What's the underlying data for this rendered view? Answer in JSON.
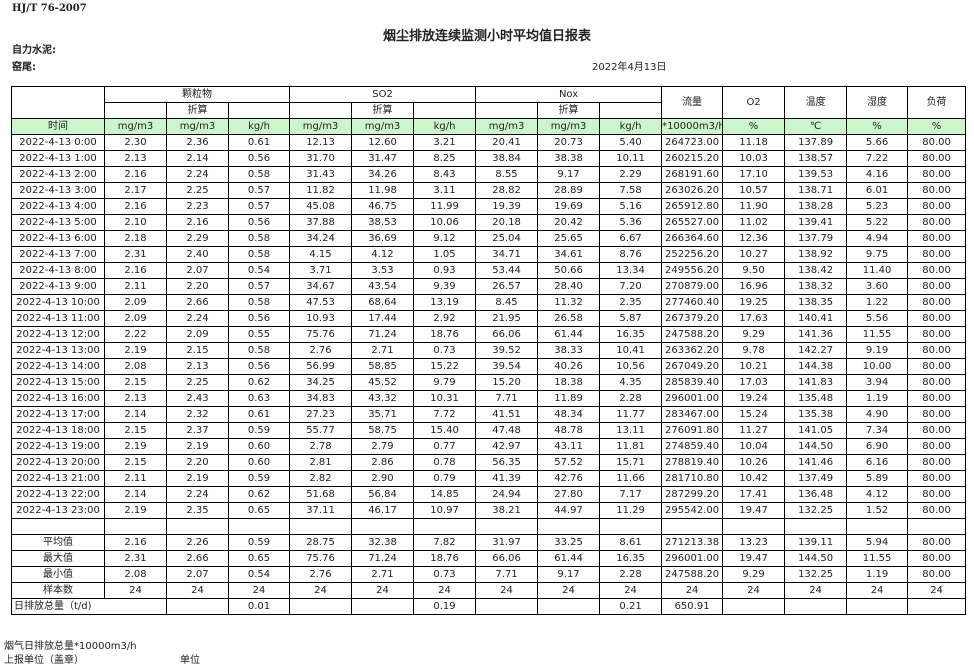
{
  "header": {
    "standard": "HJ/T  76-2007",
    "title": "烟尘排放连续监测小时平均值日报表",
    "company": "自力水泥:",
    "kiln": "窑尾:",
    "date": "2022年4月13日"
  },
  "table": {
    "groups": {
      "particulate": "颗粒物",
      "so2": "SO2",
      "nox": "Nox",
      "flow": "流量",
      "o2": "O2",
      "temp": "温度",
      "humidity": "湿度",
      "load": "负荷"
    },
    "converted": "折算",
    "units": [
      "时间",
      "mg/m3",
      "mg/m3",
      "kg/h",
      "mg/m3",
      "mg/m3",
      "kg/h",
      "mg/m3",
      "mg/m3",
      "kg/h",
      "*10000m3/h",
      "%",
      "℃",
      "%",
      "%"
    ],
    "rows": [
      [
        "2022-4-13  0:00",
        "2.30",
        "2.36",
        "0.61",
        "12.13",
        "12.60",
        "3.21",
        "20.41",
        "20.73",
        "5.40",
        "264723.00",
        "11.18",
        "137.89",
        "5.66",
        "80.00"
      ],
      [
        "2022-4-13  1:00",
        "2.13",
        "2.14",
        "0.56",
        "31.70",
        "31.47",
        "8.25",
        "38.84",
        "38.38",
        "10.11",
        "260215.20",
        "10.03",
        "138.57",
        "7.22",
        "80.00"
      ],
      [
        "2022-4-13  2:00",
        "2.16",
        "2.24",
        "0.58",
        "31.43",
        "34.26",
        "8.43",
        "8.55",
        "9.17",
        "2.29",
        "268191.60",
        "17.10",
        "139.53",
        "4.16",
        "80.00"
      ],
      [
        "2022-4-13  3:00",
        "2.17",
        "2.25",
        "0.57",
        "11.82",
        "11.98",
        "3.11",
        "28.82",
        "28.89",
        "7.58",
        "263026.20",
        "10.57",
        "138.71",
        "6.01",
        "80.00"
      ],
      [
        "2022-4-13  4:00",
        "2.16",
        "2.23",
        "0.57",
        "45.08",
        "46.75",
        "11.99",
        "19.39",
        "19.69",
        "5.16",
        "265912.80",
        "11.90",
        "138.28",
        "5.23",
        "80.00"
      ],
      [
        "2022-4-13  5:00",
        "2.10",
        "2.16",
        "0.56",
        "37.88",
        "38.53",
        "10.06",
        "20.18",
        "20.42",
        "5.36",
        "265527.00",
        "11.02",
        "139.41",
        "5.22",
        "80.00"
      ],
      [
        "2022-4-13  6:00",
        "2.18",
        "2.29",
        "0.58",
        "34.24",
        "36.69",
        "9.12",
        "25.04",
        "25.65",
        "6.67",
        "266364.60",
        "12.36",
        "137.79",
        "4.94",
        "80.00"
      ],
      [
        "2022-4-13  7:00",
        "2.31",
        "2.40",
        "0.58",
        "4.15",
        "4.12",
        "1.05",
        "34.71",
        "34.61",
        "8.76",
        "252256.20",
        "10.27",
        "138.92",
        "9.75",
        "80.00"
      ],
      [
        "2022-4-13  8:00",
        "2.16",
        "2.07",
        "0.54",
        "3.71",
        "3.53",
        "0.93",
        "53.44",
        "50.66",
        "13.34",
        "249556.20",
        "9.50",
        "138.42",
        "11.40",
        "80.00"
      ],
      [
        "2022-4-13  9:00",
        "2.11",
        "2.20",
        "0.57",
        "34.67",
        "43.54",
        "9.39",
        "26.57",
        "28.40",
        "7.20",
        "270879.00",
        "16.96",
        "138.32",
        "3.60",
        "80.00"
      ],
      [
        "2022-4-13 10:00",
        "2.09",
        "2.66",
        "0.58",
        "47.53",
        "68.64",
        "13.19",
        "8.45",
        "11.32",
        "2.35",
        "277460.40",
        "19.25",
        "138.35",
        "1.22",
        "80.00"
      ],
      [
        "2022-4-13 11:00",
        "2.09",
        "2.24",
        "0.56",
        "10.93",
        "17.44",
        "2.92",
        "21.95",
        "26.58",
        "5.87",
        "267379.20",
        "17.63",
        "140.41",
        "5.56",
        "80.00"
      ],
      [
        "2022-4-13 12:00",
        "2.22",
        "2.09",
        "0.55",
        "75.76",
        "71.24",
        "18.76",
        "66.06",
        "61.44",
        "16.35",
        "247588.20",
        "9.29",
        "141.36",
        "11.55",
        "80.00"
      ],
      [
        "2022-4-13 13:00",
        "2.19",
        "2.15",
        "0.58",
        "2.76",
        "2.71",
        "0.73",
        "39.52",
        "38.33",
        "10.41",
        "263362.20",
        "9.78",
        "142.27",
        "9.19",
        "80.00"
      ],
      [
        "2022-4-13 14:00",
        "2.08",
        "2.13",
        "0.56",
        "56.99",
        "58.85",
        "15.22",
        "39.54",
        "40.26",
        "10.56",
        "267049.20",
        "10.21",
        "144.38",
        "10.00",
        "80.00"
      ],
      [
        "2022-4-13 15:00",
        "2.15",
        "2.25",
        "0.62",
        "34.25",
        "45.52",
        "9.79",
        "15.20",
        "18.38",
        "4.35",
        "285839.40",
        "17.03",
        "141.83",
        "3.94",
        "80.00"
      ],
      [
        "2022-4-13 16:00",
        "2.13",
        "2.43",
        "0.63",
        "34.83",
        "43.32",
        "10.31",
        "7.71",
        "11.89",
        "2.28",
        "296001.00",
        "19.24",
        "135.48",
        "1.19",
        "80.00"
      ],
      [
        "2022-4-13 17:00",
        "2.14",
        "2.32",
        "0.61",
        "27.23",
        "35.71",
        "7.72",
        "41.51",
        "48.34",
        "11.77",
        "283467.00",
        "15.24",
        "135.38",
        "4.90",
        "80.00"
      ],
      [
        "2022-4-13 18:00",
        "2.15",
        "2.37",
        "0.59",
        "55.77",
        "58.75",
        "15.40",
        "47.48",
        "48.78",
        "13.11",
        "276091.80",
        "11.27",
        "141.05",
        "7.34",
        "80.00"
      ],
      [
        "2022-4-13 19:00",
        "2.19",
        "2.19",
        "0.60",
        "2.78",
        "2.79",
        "0.77",
        "42.97",
        "43.11",
        "11.81",
        "274859.40",
        "10.04",
        "144.50",
        "6.90",
        "80.00"
      ],
      [
        "2022-4-13 20:00",
        "2.15",
        "2.20",
        "0.60",
        "2.81",
        "2.86",
        "0.78",
        "56.35",
        "57.52",
        "15.71",
        "278819.40",
        "10.26",
        "141.46",
        "6.16",
        "80.00"
      ],
      [
        "2022-4-13 21:00",
        "2.11",
        "2.19",
        "0.59",
        "2.82",
        "2.90",
        "0.79",
        "41.39",
        "42.76",
        "11.66",
        "281710.80",
        "10.42",
        "137.49",
        "5.89",
        "80.00"
      ],
      [
        "2022-4-13 22:00",
        "2.14",
        "2.24",
        "0.62",
        "51.68",
        "56.84",
        "14.85",
        "24.94",
        "27.80",
        "7.17",
        "287299.20",
        "17.41",
        "136.48",
        "4.12",
        "80.00"
      ],
      [
        "2022-4-13 23:00",
        "2.19",
        "2.35",
        "0.65",
        "37.11",
        "46.17",
        "10.97",
        "38.21",
        "44.97",
        "11.29",
        "295542.00",
        "19.47",
        "132.25",
        "1.52",
        "80.00"
      ]
    ],
    "summary": [
      [
        "平均值",
        "2.16",
        "2.26",
        "0.59",
        "28.75",
        "32.38",
        "7.82",
        "31.97",
        "33.25",
        "8.61",
        "271213.38",
        "13.23",
        "139.11",
        "5.94",
        "80.00"
      ],
      [
        "最大值",
        "2.31",
        "2.66",
        "0.65",
        "75.76",
        "71.24",
        "18.76",
        "66.06",
        "61.44",
        "16.35",
        "296001.00",
        "19.47",
        "144.50",
        "11.55",
        "80.00"
      ],
      [
        "最小值",
        "2.08",
        "2.07",
        "0.54",
        "2.76",
        "2.71",
        "0.73",
        "7.71",
        "9.17",
        "2.28",
        "247588.20",
        "9.29",
        "132.25",
        "1.19",
        "80.00"
      ],
      [
        "样本数",
        "24",
        "24",
        "24",
        "24",
        "24",
        "24",
        "24",
        "24",
        "24",
        "24",
        "24",
        "24",
        "24",
        "24"
      ]
    ],
    "daily": {
      "label": "日排放总量（t/d)",
      "cells": [
        "",
        "0.01",
        "",
        "",
        "0.19",
        "",
        "",
        "0.21",
        "650.91",
        "",
        "",
        "",
        ""
      ]
    }
  },
  "footer": {
    "flue_total": "烟气日排放总量*10000m3/h",
    "reporting_unit": "上报单位（盖章）",
    "unit": "单位"
  }
}
